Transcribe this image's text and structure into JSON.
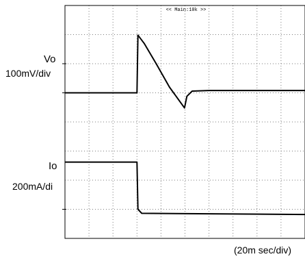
{
  "labels": {
    "vo_name": "Vo",
    "vo_scale": "100mV/div",
    "io_name": "Io",
    "io_scale": "200mA/di",
    "time_scale": "(20m sec/div)",
    "header": "<< Main:10k >>"
  },
  "colors": {
    "trace": "#000000",
    "grid": "#7a7a7a",
    "frame": "#000000"
  },
  "chart_data": {
    "type": "line",
    "title": "",
    "xlabel": "(20m sec/div)",
    "ylabel": "",
    "grid": true,
    "x_unit": "div",
    "y_unit": "div",
    "xlim": [
      0,
      10
    ],
    "ylim": [
      0,
      8
    ],
    "series": [
      {
        "name": "Vo",
        "scale": "100mV/div",
        "points": [
          [
            0,
            5.0
          ],
          [
            3.0,
            5.0
          ],
          [
            3.04,
            6.98
          ],
          [
            3.3,
            6.7
          ],
          [
            3.8,
            6.0
          ],
          [
            4.35,
            5.2
          ],
          [
            4.98,
            4.48
          ],
          [
            5.08,
            4.88
          ],
          [
            5.3,
            5.06
          ],
          [
            6.0,
            5.08
          ],
          [
            10,
            5.08
          ]
        ]
      },
      {
        "name": "Io",
        "scale": "200mA/di",
        "points": [
          [
            0,
            2.62
          ],
          [
            3.0,
            2.62
          ],
          [
            3.04,
            1.0
          ],
          [
            3.2,
            0.86
          ],
          [
            10,
            0.82
          ]
        ]
      }
    ]
  }
}
